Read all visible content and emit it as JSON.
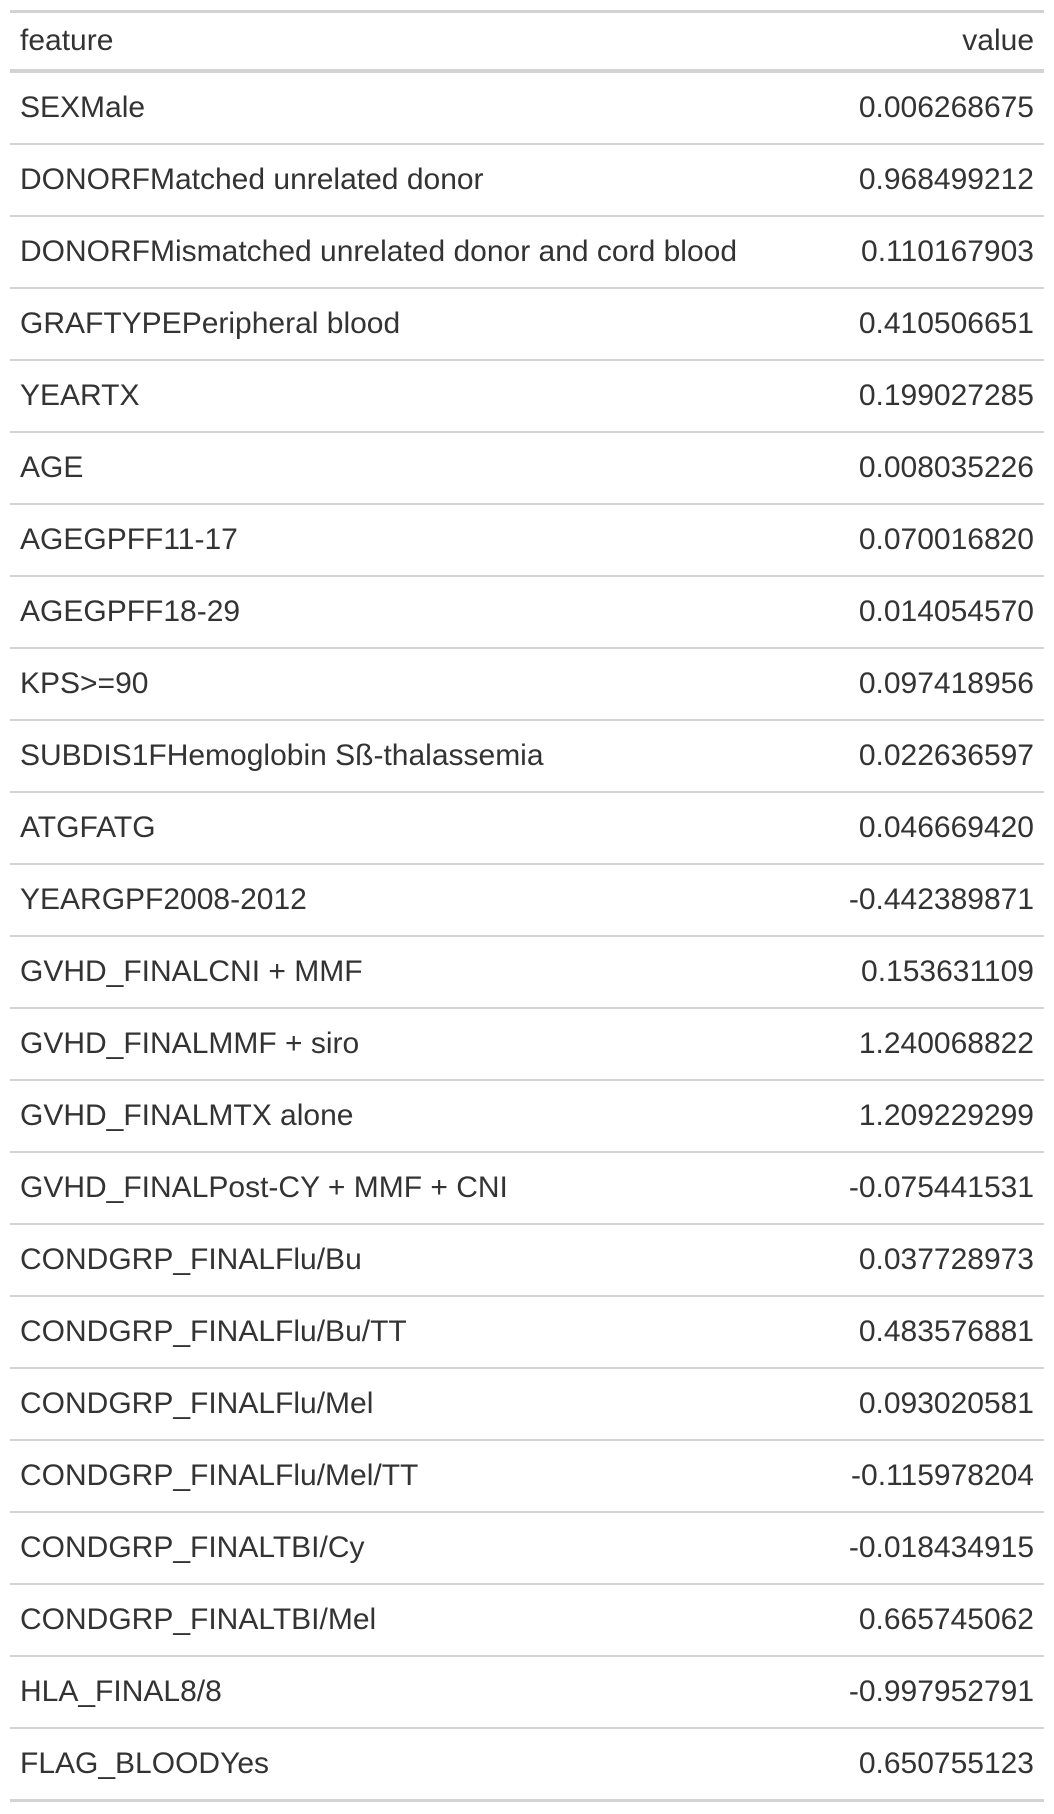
{
  "table": {
    "headers": {
      "feature": "feature",
      "value": "value"
    },
    "rows": [
      {
        "feature": "SEXMale",
        "value": "0.006268675"
      },
      {
        "feature": "DONORFMatched unrelated donor",
        "value": "0.968499212"
      },
      {
        "feature": "DONORFMismatched unrelated donor and cord blood",
        "value": "0.110167903"
      },
      {
        "feature": "GRAFTYPEPeripheral blood",
        "value": "0.410506651"
      },
      {
        "feature": "YEARTX",
        "value": "0.199027285"
      },
      {
        "feature": "AGE",
        "value": "0.008035226"
      },
      {
        "feature": "AGEGPFF11-17",
        "value": "0.070016820"
      },
      {
        "feature": "AGEGPFF18-29",
        "value": "0.014054570"
      },
      {
        "feature": "KPS>=90",
        "value": "0.097418956"
      },
      {
        "feature": "SUBDIS1FHemoglobin Sß-thalassemia",
        "value": "0.022636597"
      },
      {
        "feature": "ATGFATG",
        "value": "0.046669420"
      },
      {
        "feature": "YEARGPF2008-2012",
        "value": "-0.442389871"
      },
      {
        "feature": "GVHD_FINALCNI + MMF",
        "value": "0.153631109"
      },
      {
        "feature": "GVHD_FINALMMF + siro",
        "value": "1.240068822"
      },
      {
        "feature": "GVHD_FINALMTX alone",
        "value": "1.209229299"
      },
      {
        "feature": "GVHD_FINALPost-CY + MMF + CNI",
        "value": "-0.075441531"
      },
      {
        "feature": "CONDGRP_FINALFlu/Bu",
        "value": "0.037728973"
      },
      {
        "feature": "CONDGRP_FINALFlu/Bu/TT",
        "value": "0.483576881"
      },
      {
        "feature": "CONDGRP_FINALFlu/Mel",
        "value": "0.093020581"
      },
      {
        "feature": "CONDGRP_FINALFlu/Mel/TT",
        "value": "-0.115978204"
      },
      {
        "feature": "CONDGRP_FINALTBI/Cy",
        "value": "-0.018434915"
      },
      {
        "feature": "CONDGRP_FINALTBI/Mel",
        "value": "0.665745062"
      },
      {
        "feature": "HLA_FINAL8/8",
        "value": "-0.997952791"
      },
      {
        "feature": "FLAG_BLOODYes",
        "value": "0.650755123"
      }
    ]
  }
}
